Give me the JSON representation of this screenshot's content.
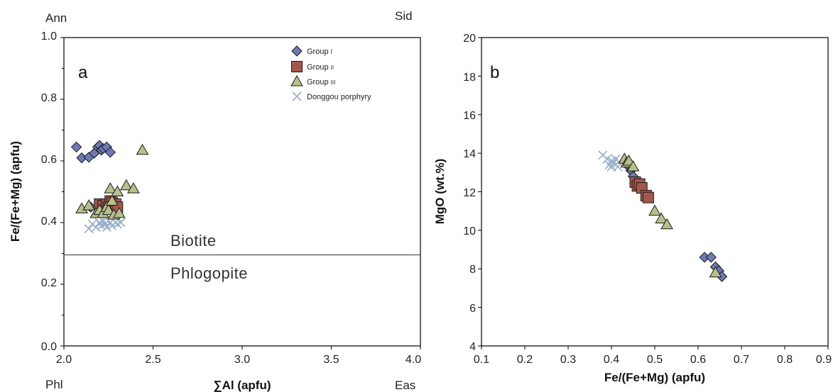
{
  "colors": {
    "group1": "#6f79b4",
    "group2": "#a4584b",
    "group3": "#b7c08a",
    "donggou": "#96afcc"
  },
  "chart_data": [
    {
      "type": "scatter",
      "panel_label": "a",
      "xlabel": "∑Al (apfu)",
      "ylabel": "Fe/(Fe+Mg) (apfu)",
      "xlim": [
        2.0,
        4.0
      ],
      "ylim": [
        0.0,
        1.0
      ],
      "xticks": [
        "2.0",
        "2.5",
        "3.0",
        "3.5",
        "4.0"
      ],
      "yticks": [
        "0.0",
        "0.2",
        "0.4",
        "0.6",
        "0.8",
        "1.0"
      ],
      "corner_labels": {
        "top_left": "Ann",
        "top_right": "Sid",
        "bottom_left": "Phl",
        "bottom_right": "Eas"
      },
      "field_line_y": 0.295,
      "field_labels": {
        "upper": "Biotite",
        "lower": "Phlogopite"
      },
      "grid": false,
      "legend": {
        "position": "top-right",
        "entries": [
          {
            "name": "Group",
            "suffix": "I",
            "marker": "diamond",
            "key": "group1"
          },
          {
            "name": "Group",
            "suffix": "II",
            "marker": "square",
            "key": "group2"
          },
          {
            "name": "Group",
            "suffix": "III",
            "marker": "triangle",
            "key": "group3"
          },
          {
            "name": "Donggou porphyry",
            "suffix": "",
            "marker": "x",
            "key": "donggou"
          }
        ]
      },
      "series": [
        {
          "key": "group1",
          "marker": "diamond",
          "points": [
            [
              2.07,
              0.645
            ],
            [
              2.1,
              0.61
            ],
            [
              2.14,
              0.612
            ],
            [
              2.17,
              0.625
            ],
            [
              2.19,
              0.645
            ],
            [
              2.2,
              0.65
            ],
            [
              2.21,
              0.635
            ],
            [
              2.22,
              0.64
            ],
            [
              2.24,
              0.645
            ],
            [
              2.26,
              0.628
            ],
            [
              2.15,
              0.45
            ],
            [
              2.2,
              0.46
            ]
          ]
        },
        {
          "key": "group2",
          "marker": "square",
          "points": [
            [
              2.2,
              0.46
            ],
            [
              2.22,
              0.455
            ],
            [
              2.24,
              0.46
            ],
            [
              2.25,
              0.45
            ],
            [
              2.26,
              0.47
            ],
            [
              2.27,
              0.465
            ],
            [
              2.28,
              0.455
            ],
            [
              2.29,
              0.46
            ],
            [
              2.3,
              0.45
            ]
          ]
        },
        {
          "key": "group3",
          "marker": "triangle",
          "points": [
            [
              2.1,
              0.445
            ],
            [
              2.14,
              0.455
            ],
            [
              2.18,
              0.43
            ],
            [
              2.2,
              0.44
            ],
            [
              2.22,
              0.43
            ],
            [
              2.24,
              0.45
            ],
            [
              2.25,
              0.44
            ],
            [
              2.26,
              0.51
            ],
            [
              2.27,
              0.47
            ],
            [
              2.28,
              0.425
            ],
            [
              2.3,
              0.5
            ],
            [
              2.31,
              0.43
            ],
            [
              2.35,
              0.52
            ],
            [
              2.39,
              0.51
            ],
            [
              2.44,
              0.635
            ]
          ]
        },
        {
          "key": "donggou",
          "marker": "x",
          "points": [
            [
              2.14,
              0.38
            ],
            [
              2.16,
              0.395
            ],
            [
              2.18,
              0.385
            ],
            [
              2.2,
              0.4
            ],
            [
              2.21,
              0.39
            ],
            [
              2.22,
              0.405
            ],
            [
              2.23,
              0.395
            ],
            [
              2.24,
              0.385
            ],
            [
              2.26,
              0.4
            ],
            [
              2.27,
              0.39
            ],
            [
              2.29,
              0.4
            ],
            [
              2.3,
              0.395
            ],
            [
              2.32,
              0.4
            ]
          ]
        }
      ]
    },
    {
      "type": "scatter",
      "panel_label": "b",
      "xlabel": "Fe/(Fe+Mg) (apfu)",
      "ylabel": "MgO (wt.%)",
      "xlim": [
        0.1,
        0.9
      ],
      "ylim": [
        4,
        20
      ],
      "xticks": [
        "0.1",
        "0.2",
        "0.3",
        "0.4",
        "0.5",
        "0.6",
        "0.7",
        "0.8",
        "0.9"
      ],
      "yticks": [
        "4",
        "6",
        "8",
        "10",
        "12",
        "14",
        "16",
        "18",
        "20"
      ],
      "grid": false,
      "series": [
        {
          "key": "donggou",
          "marker": "x",
          "points": [
            [
              0.38,
              13.9
            ],
            [
              0.39,
              13.7
            ],
            [
              0.395,
              13.4
            ],
            [
              0.4,
              13.6
            ],
            [
              0.4,
              13.3
            ],
            [
              0.405,
              13.5
            ],
            [
              0.41,
              13.4
            ],
            [
              0.41,
              13.7
            ],
            [
              0.415,
              13.3
            ]
          ]
        },
        {
          "key": "group1",
          "marker": "diamond",
          "points": [
            [
              0.44,
              13.3
            ],
            [
              0.445,
              13.1
            ],
            [
              0.45,
              12.8
            ],
            [
              0.455,
              12.5
            ],
            [
              0.615,
              8.6
            ],
            [
              0.63,
              8.6
            ],
            [
              0.64,
              8.1
            ],
            [
              0.648,
              7.9
            ],
            [
              0.655,
              7.6
            ]
          ]
        },
        {
          "key": "group2",
          "marker": "square",
          "points": [
            [
              0.455,
              12.5
            ],
            [
              0.46,
              12.3
            ],
            [
              0.465,
              12.4
            ],
            [
              0.47,
              12.2
            ],
            [
              0.48,
              11.8
            ],
            [
              0.485,
              11.7
            ]
          ]
        },
        {
          "key": "group3",
          "marker": "triangle",
          "points": [
            [
              0.43,
              13.7
            ],
            [
              0.435,
              13.5
            ],
            [
              0.44,
              13.6
            ],
            [
              0.45,
              13.3
            ],
            [
              0.5,
              11.0
            ],
            [
              0.515,
              10.6
            ],
            [
              0.528,
              10.3
            ],
            [
              0.64,
              7.8
            ]
          ]
        }
      ]
    }
  ]
}
